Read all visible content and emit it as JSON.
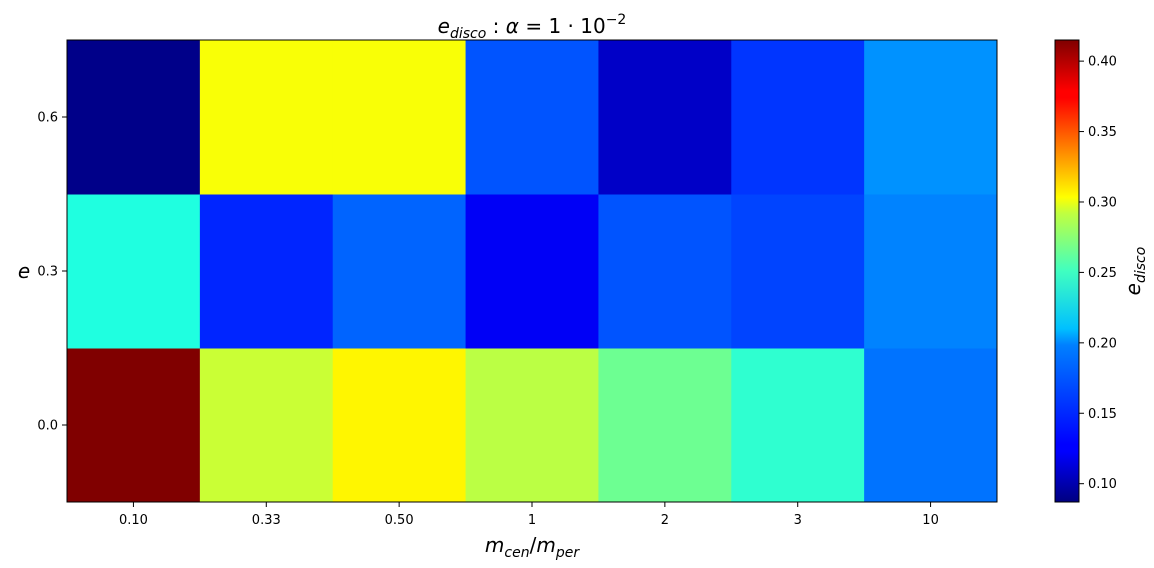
{
  "chart_data": {
    "type": "heatmap",
    "title_parts": {
      "var": "e",
      "var_sub": "disco",
      "sep": " : ",
      "alpha": "α",
      "eq": " = 1 · 10",
      "exp": "−2"
    },
    "xlabel_parts": {
      "a": "m",
      "a_sub": "cen",
      "slash": "/",
      "b": "m",
      "b_sub": "per"
    },
    "ylabel": "e",
    "colorbar_label_parts": {
      "var": "e",
      "var_sub": "disco"
    },
    "x_categories": [
      "0.10",
      "0.33",
      "0.50",
      "1",
      "2",
      "3",
      "10"
    ],
    "y_categories": [
      "0.0",
      "0.3",
      "0.6"
    ],
    "values": [
      [
        0.415,
        0.275,
        0.295,
        0.27,
        0.245,
        0.225,
        0.165
      ],
      [
        0.22,
        0.14,
        0.16,
        0.125,
        0.155,
        0.15,
        0.17
      ],
      [
        0.09,
        0.29,
        0.29,
        0.155,
        0.11,
        0.145,
        0.175
      ]
    ],
    "colormap": "jet",
    "colorbar_range": [
      0.087,
      0.415
    ],
    "colorbar_ticks": [
      "0.10",
      "0.15",
      "0.20",
      "0.25",
      "0.30",
      "0.35",
      "0.40"
    ],
    "colorbar_tick_values": [
      0.1,
      0.15,
      0.2,
      0.25,
      0.3,
      0.35,
      0.4
    ]
  }
}
